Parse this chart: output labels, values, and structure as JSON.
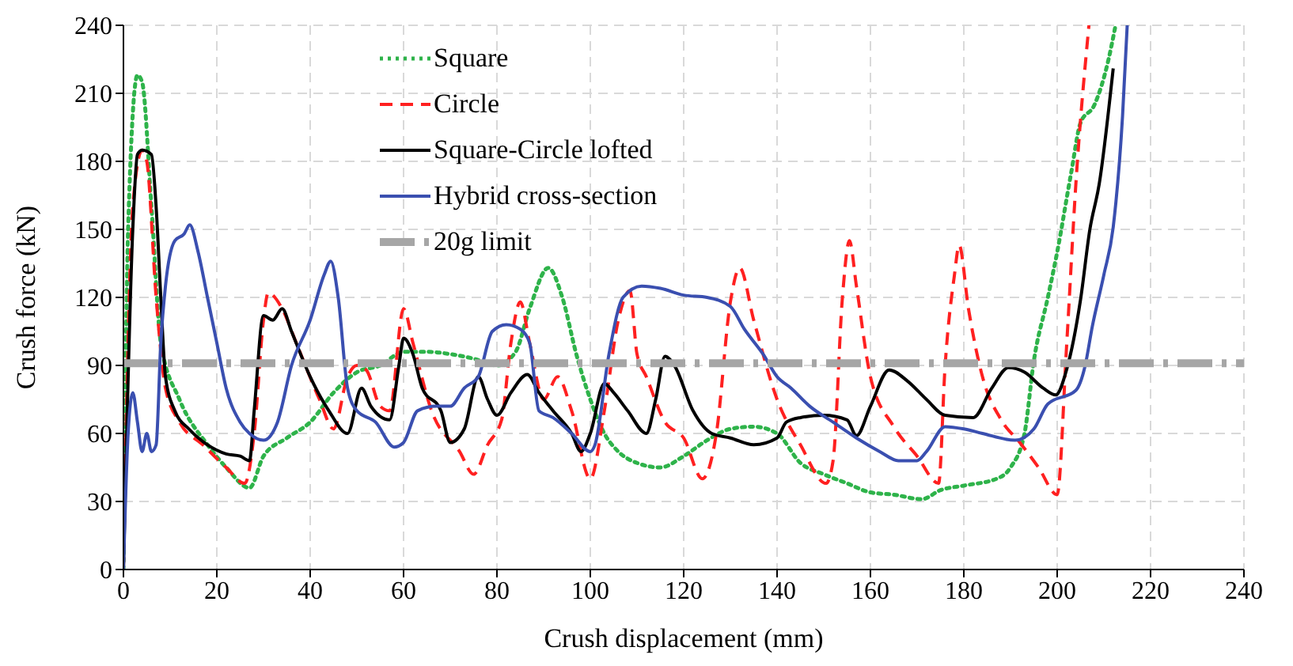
{
  "chart_data": {
    "type": "line",
    "xlabel": "Crush displacement  (mm)",
    "ylabel": "Crush force (kN)",
    "xlim": [
      0,
      240
    ],
    "xticks": [
      0,
      20,
      40,
      60,
      80,
      100,
      120,
      140,
      160,
      180,
      200,
      220,
      240
    ],
    "ylim": [
      0,
      240
    ],
    "yticks": [
      0,
      30,
      60,
      90,
      120,
      150,
      180,
      210,
      240
    ],
    "grid": true,
    "legend": "top",
    "marker": "none",
    "series": [
      {
        "name": "Square",
        "color": "#2eb34a",
        "line_style": "dotted",
        "x": [
          0,
          1,
          3,
          4,
          6,
          8,
          12,
          18,
          22,
          27,
          30,
          35,
          40,
          45,
          50,
          55,
          60,
          65,
          70,
          75,
          80,
          84,
          87,
          91,
          94,
          97,
          100,
          103,
          106,
          110,
          115,
          120,
          125,
          130,
          135,
          140,
          145,
          150,
          155,
          160,
          165,
          171,
          175,
          180,
          187,
          190,
          193,
          195,
          198,
          200,
          203,
          205,
          208,
          211,
          212.5
        ],
        "values": [
          0,
          150,
          218,
          215,
          160,
          100,
          75,
          55,
          45,
          36,
          50,
          58,
          65,
          78,
          87,
          90,
          96,
          96,
          95,
          93,
          90,
          96,
          115,
          133,
          120,
          95,
          75,
          60,
          52,
          47,
          45,
          50,
          57,
          62,
          63,
          60,
          47,
          42,
          38,
          34,
          33,
          31,
          35,
          37,
          40,
          45,
          60,
          92,
          120,
          140,
          175,
          197,
          205,
          225,
          240
        ]
      },
      {
        "name": "Circle",
        "color": "#ff2020",
        "line_style": "dashed",
        "x": [
          0,
          2,
          4,
          5,
          7,
          9,
          12,
          17,
          22,
          26,
          28,
          30,
          31,
          34,
          37,
          42,
          45,
          48,
          50,
          52,
          55,
          57,
          60,
          62,
          66,
          72,
          75,
          78,
          81,
          83,
          85,
          87,
          90,
          93,
          96,
          100,
          103,
          106,
          108.5,
          110,
          112,
          116,
          120,
          124,
          127,
          130,
          132,
          135,
          140,
          145,
          150.5,
          152,
          154,
          155.5,
          157,
          160,
          165,
          170,
          174.6,
          176,
          178,
          179,
          181,
          184,
          188,
          192,
          196,
          200,
          202,
          204,
          206.8
        ],
        "values": [
          0,
          160,
          185,
          180,
          120,
          80,
          65,
          55,
          45,
          38,
          60,
          110,
          122,
          115,
          100,
          75,
          62,
          85,
          90,
          88,
          72,
          70,
          115,
          100,
          70,
          52,
          42,
          55,
          66,
          100,
          118,
          100,
          75,
          85,
          70,
          40,
          70,
          110,
          123,
          95,
          85,
          65,
          58,
          40,
          60,
          118,
          133,
          110,
          75,
          55,
          38,
          48,
          120,
          145,
          125,
          85,
          63,
          50,
          38,
          90,
          130,
          143,
          115,
          85,
          66,
          56,
          45,
          33,
          98,
          170,
          240
        ]
      },
      {
        "name": "Square-Circle lofted",
        "color": "#000000",
        "line_style": "solid",
        "x": [
          0,
          2,
          3,
          4,
          6,
          7,
          8,
          9,
          11,
          14,
          18,
          22,
          25,
          27,
          28,
          30,
          32,
          34,
          36,
          40,
          44,
          48,
          51,
          53,
          57,
          59,
          60,
          62,
          64,
          68,
          70,
          73,
          76,
          78,
          80,
          83,
          86.5,
          89,
          92,
          96,
          98,
          100,
          103,
          105,
          108,
          112,
          114,
          116,
          118,
          122,
          126,
          130,
          135,
          140,
          142,
          145,
          150,
          155,
          157,
          160,
          164,
          168,
          172,
          176,
          182,
          186,
          189.5,
          193,
          197,
          199.7,
          202,
          205,
          207,
          209,
          212
        ],
        "values": [
          0,
          150,
          183,
          185,
          183,
          160,
          120,
          85,
          70,
          62,
          55,
          51,
          50,
          48,
          70,
          112,
          110,
          115,
          105,
          85,
          70,
          60,
          80,
          72,
          66,
          90,
          102,
          95,
          80,
          70,
          56,
          62,
          85,
          75,
          68,
          78,
          86,
          78,
          70,
          60,
          52,
          60,
          82,
          78,
          70,
          60,
          75,
          94,
          90,
          70,
          60,
          58,
          55,
          58,
          65,
          67,
          68,
          66,
          59,
          72,
          88,
          83,
          75,
          68,
          67,
          80,
          89,
          87,
          80,
          77,
          88,
          119,
          150,
          170,
          221
        ]
      },
      {
        "name": "Hybrid cross-section",
        "color": "#3a4fb0",
        "line_style": "solid",
        "x": [
          0,
          1,
          2,
          3,
          4,
          5,
          6,
          7,
          8,
          9,
          11,
          13,
          14.2,
          16,
          18,
          20,
          22,
          25,
          27,
          30,
          33,
          36,
          40,
          43,
          44.4,
          46,
          48,
          50,
          54,
          58,
          60,
          63,
          67,
          70,
          73,
          76,
          79,
          82,
          85,
          87,
          89,
          92,
          96,
          100,
          101,
          104,
          107,
          111,
          115,
          120,
          125,
          130,
          133,
          137,
          140,
          143,
          147,
          152,
          157,
          162,
          166,
          170,
          172,
          176,
          180,
          184,
          191,
          195,
          198,
          204,
          206,
          207.5,
          210,
          212,
          214,
          215
        ],
        "values": [
          0,
          60,
          78,
          65,
          52,
          60,
          52,
          55,
          100,
          125,
          145,
          148,
          152,
          140,
          120,
          100,
          80,
          65,
          60,
          57,
          65,
          90,
          110,
          130,
          136,
          120,
          80,
          70,
          65,
          54,
          56,
          70,
          72,
          72,
          80,
          85,
          105,
          108,
          106,
          100,
          70,
          67,
          60,
          52,
          55,
          95,
          120,
          125,
          124,
          121,
          120,
          116,
          106,
          95,
          85,
          80,
          72,
          65,
          58,
          52,
          48,
          48,
          52,
          63,
          62,
          60,
          57,
          62,
          73,
          79,
          90,
          107,
          130,
          151,
          200,
          240
        ]
      },
      {
        "name": "20g limit",
        "color": "#a6a6a6",
        "line_style": "dashdot",
        "x": [
          0,
          240
        ],
        "values": [
          91,
          91
        ]
      }
    ]
  }
}
